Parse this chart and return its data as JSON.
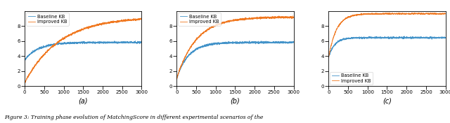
{
  "n_steps": 3000,
  "seed": 42,
  "subplots": [
    {
      "label": "(a)",
      "baseline": {
        "start": 3.5,
        "plateau": 5.82,
        "rise_tau": 350,
        "noise_std": 0.1,
        "delay": 0
      },
      "improved": {
        "start": 0.5,
        "plateau": 9.25,
        "rise_tau": 900,
        "noise_std": 0.1,
        "delay": 0
      },
      "ylim": [
        0,
        10
      ],
      "yticks": [
        0,
        2,
        4,
        6,
        8
      ],
      "legend_loc": "upper left"
    },
    {
      "label": "(b)",
      "baseline": {
        "start": 1.0,
        "plateau": 5.82,
        "rise_tau": 300,
        "noise_std": 0.1,
        "delay": 0
      },
      "improved": {
        "start": 1.0,
        "plateau": 9.2,
        "rise_tau": 500,
        "noise_std": 0.1,
        "delay": 0
      },
      "ylim": [
        0,
        10
      ],
      "yticks": [
        0,
        2,
        4,
        6,
        8
      ],
      "legend_loc": "upper left"
    },
    {
      "label": "(c)",
      "baseline": {
        "start": 3.8,
        "plateau": 6.45,
        "rise_tau": 150,
        "noise_std": 0.09,
        "delay": 0
      },
      "improved": {
        "start": 3.8,
        "plateau": 9.65,
        "rise_tau": 200,
        "noise_std": 0.07,
        "delay": 0
      },
      "ylim": [
        0,
        10
      ],
      "yticks": [
        0,
        2,
        4,
        6,
        8
      ],
      "legend_loc": "lower left"
    }
  ],
  "baseline_color": "#4393c9",
  "improved_color": "#f07820",
  "baseline_label": "Baseline KB",
  "improved_label": "Improved KB",
  "xticks": [
    0,
    500,
    1000,
    1500,
    2000,
    2500,
    3000
  ],
  "caption": "Figure 3: Training phase evolution of MatchingScore in different experimental scenarios of the"
}
